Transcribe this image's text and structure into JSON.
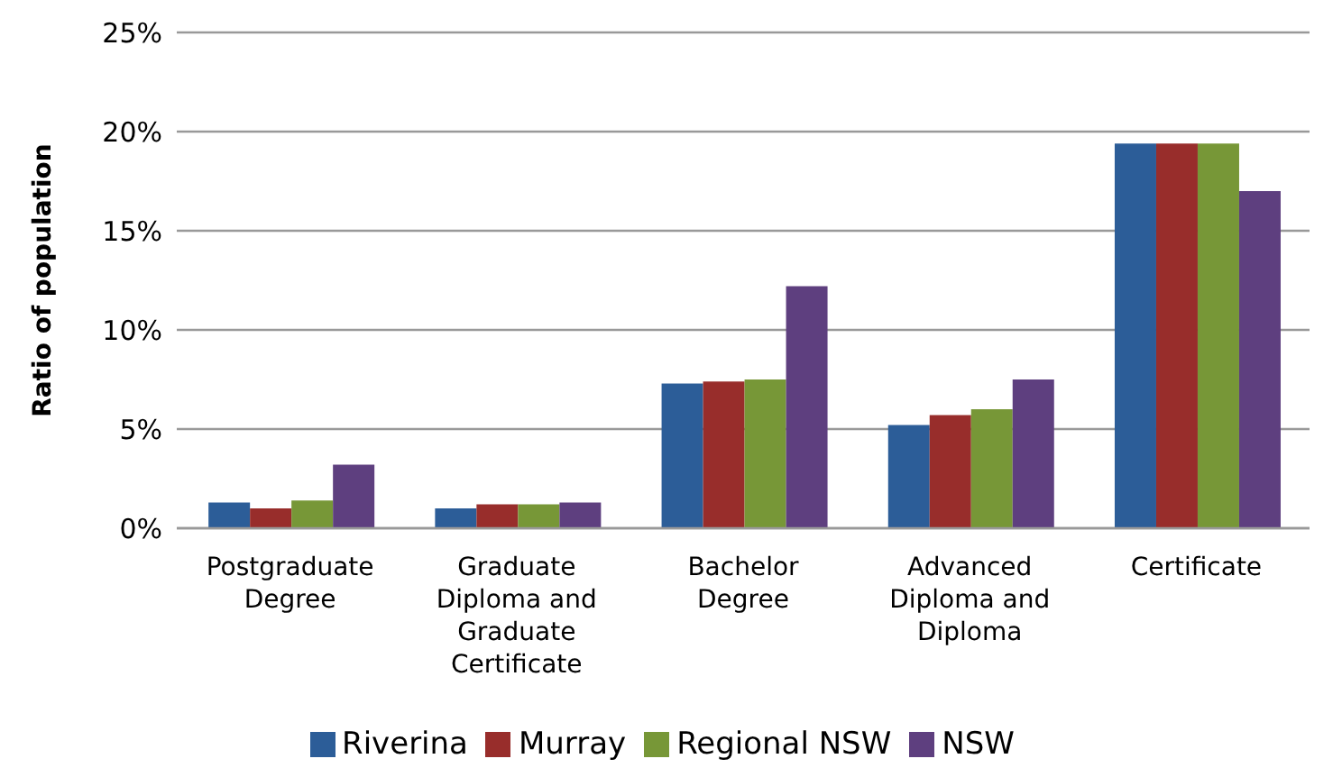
{
  "chart_data": {
    "type": "bar",
    "ylabel": "Ratio of population",
    "categories": [
      "Postgraduate Degree",
      "Graduate Diploma and Graduate Certificate",
      "Bachelor Degree",
      "Advanced Diploma and Diploma",
      "Certificate"
    ],
    "series": [
      {
        "name": "Riverina",
        "color": "#2c5d98",
        "values": [
          1.3,
          1.0,
          7.3,
          5.2,
          19.4
        ]
      },
      {
        "name": "Murray",
        "color": "#982d2b",
        "values": [
          1.0,
          1.2,
          7.4,
          5.7,
          19.4
        ]
      },
      {
        "name": "Regional NSW",
        "color": "#779737",
        "values": [
          1.4,
          1.2,
          7.5,
          6.0,
          19.4
        ]
      },
      {
        "name": "NSW",
        "color": "#5e3f7f",
        "values": [
          3.2,
          1.3,
          12.2,
          7.5,
          17.0
        ]
      }
    ],
    "ylim": [
      0,
      25
    ],
    "yticks": [
      {
        "value": 0,
        "label": "0%"
      },
      {
        "value": 5,
        "label": "5%"
      },
      {
        "value": 10,
        "label": "10%"
      },
      {
        "value": 15,
        "label": "15%"
      },
      {
        "value": 20,
        "label": "20%"
      },
      {
        "value": 25,
        "label": "25%"
      }
    ],
    "grid": "y",
    "legend": "bottom"
  }
}
